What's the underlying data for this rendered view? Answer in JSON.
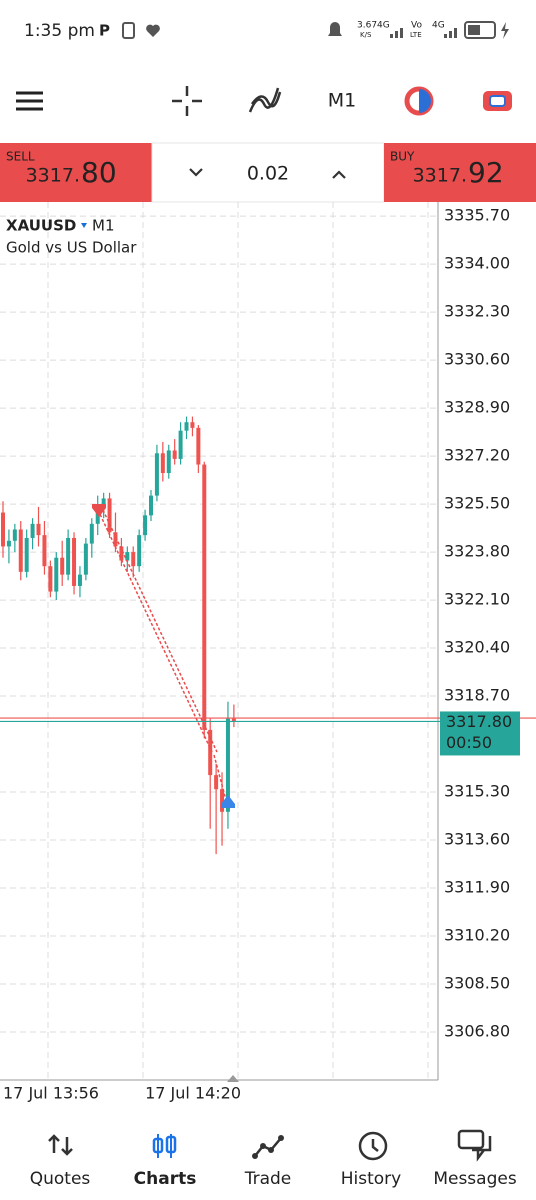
{
  "status_bar": {
    "time": "1:35 pm",
    "speed": "3.67",
    "speed_unit": "K/S",
    "net1": "4G",
    "volte": "Vo",
    "lte": "LTE",
    "net2": "4G"
  },
  "toolbar": {
    "timeframe": "M1"
  },
  "trade_panel": {
    "sell_label": "SELL",
    "sell_price_main": "3317.",
    "sell_price_big": "80",
    "volume": "0.02",
    "buy_label": "BUY",
    "buy_price_main": "3317.",
    "buy_price_big": "92"
  },
  "chart_data": {
    "type": "candlestick",
    "symbol": "XAUUSD",
    "timeframe": "M1",
    "description": "Gold vs US Dollar",
    "categories": [
      "17 Jul 13:56",
      null,
      null,
      null,
      null,
      null,
      null,
      null,
      null,
      null,
      null,
      null,
      null,
      null,
      null,
      null,
      null,
      null,
      null,
      null,
      null,
      null,
      null,
      null,
      "17 Jul 14:20",
      null,
      null,
      null,
      null,
      null,
      null,
      null,
      null,
      null,
      null,
      null,
      null,
      null,
      null,
      null
    ],
    "open": [
      3325.2,
      3324.0,
      3324.2,
      3324.6,
      3323.1,
      3324.3,
      3324.8,
      3324.4,
      3323.3,
      3322.4,
      3323.6,
      3323.0,
      3324.3,
      3322.6,
      3323.0,
      3324.1,
      3324.8,
      3325.5,
      3325.7,
      3324.5,
      3324.0,
      3323.5,
      3323.8,
      3323.3,
      3324.4,
      3325.1,
      3325.8,
      3327.3,
      3326.6,
      3327.4,
      3327.1,
      3328.1,
      3328.4,
      3328.2,
      3326.9,
      3317.5,
      3315.9,
      3315.4,
      3314.6,
      3317.9
    ],
    "high": [
      3325.6,
      3324.6,
      3324.8,
      3324.9,
      3324.6,
      3325.0,
      3325.4,
      3324.9,
      3323.5,
      3323.8,
      3324.2,
      3324.6,
      3324.5,
      3323.3,
      3324.3,
      3325.0,
      3325.8,
      3325.9,
      3325.9,
      3325.2,
      3324.3,
      3324.0,
      3324.0,
      3324.6,
      3325.3,
      3326.0,
      3327.6,
      3327.7,
      3327.6,
      3327.8,
      3328.4,
      3328.6,
      3328.6,
      3328.3,
      3327.0,
      3317.9,
      3316.3,
      3316.0,
      3318.5,
      3318.4
    ],
    "low": [
      3323.6,
      3323.4,
      3323.8,
      3322.8,
      3322.9,
      3323.9,
      3324.0,
      3323.0,
      3322.2,
      3322.1,
      3322.6,
      3322.8,
      3322.3,
      3322.2,
      3322.8,
      3323.6,
      3324.4,
      3325.0,
      3324.3,
      3323.8,
      3323.3,
      3323.1,
      3322.9,
      3323.1,
      3324.2,
      3324.9,
      3325.6,
      3326.3,
      3326.4,
      3326.9,
      3326.9,
      3327.8,
      3327.9,
      3326.6,
      3317.2,
      3314.0,
      3313.1,
      3313.4,
      3314.0,
      3317.6
    ],
    "close": [
      3324.0,
      3324.2,
      3324.6,
      3323.1,
      3324.3,
      3324.8,
      3324.4,
      3323.3,
      3322.4,
      3323.6,
      3323.0,
      3324.3,
      3322.6,
      3323.0,
      3324.1,
      3324.8,
      3325.5,
      3325.7,
      3324.5,
      3324.0,
      3323.5,
      3323.8,
      3323.3,
      3324.4,
      3325.1,
      3325.8,
      3327.3,
      3326.6,
      3327.4,
      3327.1,
      3328.1,
      3328.4,
      3328.2,
      3326.9,
      3317.5,
      3315.9,
      3315.4,
      3314.6,
      3317.9,
      3317.8
    ],
    "up_color": "#26a69a",
    "down_color": "#ef5350",
    "ylim": [
      3305.1,
      3336.2
    ],
    "yticks": [
      {
        "value": 3335.7,
        "label": "3335.70"
      },
      {
        "value": 3334.0,
        "label": "3334.00"
      },
      {
        "value": 3332.3,
        "label": "3332.30"
      },
      {
        "value": 3330.6,
        "label": "3330.60"
      },
      {
        "value": 3328.9,
        "label": "3328.90"
      },
      {
        "value": 3327.2,
        "label": "3327.20"
      },
      {
        "value": 3325.5,
        "label": "3325.50"
      },
      {
        "value": 3323.8,
        "label": "3323.80"
      },
      {
        "value": 3322.1,
        "label": "3322.10"
      },
      {
        "value": 3320.4,
        "label": "3320.40"
      },
      {
        "value": 3318.7,
        "label": "3318.70"
      },
      {
        "value": 3315.3,
        "label": "3315.30"
      },
      {
        "value": 3313.6,
        "label": "3313.60"
      },
      {
        "value": 3311.9,
        "label": "3311.90"
      },
      {
        "value": 3310.2,
        "label": "3310.20"
      },
      {
        "value": 3308.5,
        "label": "3308.50"
      },
      {
        "value": 3306.8,
        "label": "3306.80"
      }
    ],
    "bid": {
      "value": 3317.8,
      "label": "3317.80"
    },
    "ask": 3317.92,
    "countdown": "00:50",
    "grid": true
  },
  "nav": [
    {
      "label": "Quotes"
    },
    {
      "label": "Charts"
    },
    {
      "label": "Trade"
    },
    {
      "label": "History"
    },
    {
      "label": "Messages"
    }
  ],
  "nav_active": "Charts"
}
